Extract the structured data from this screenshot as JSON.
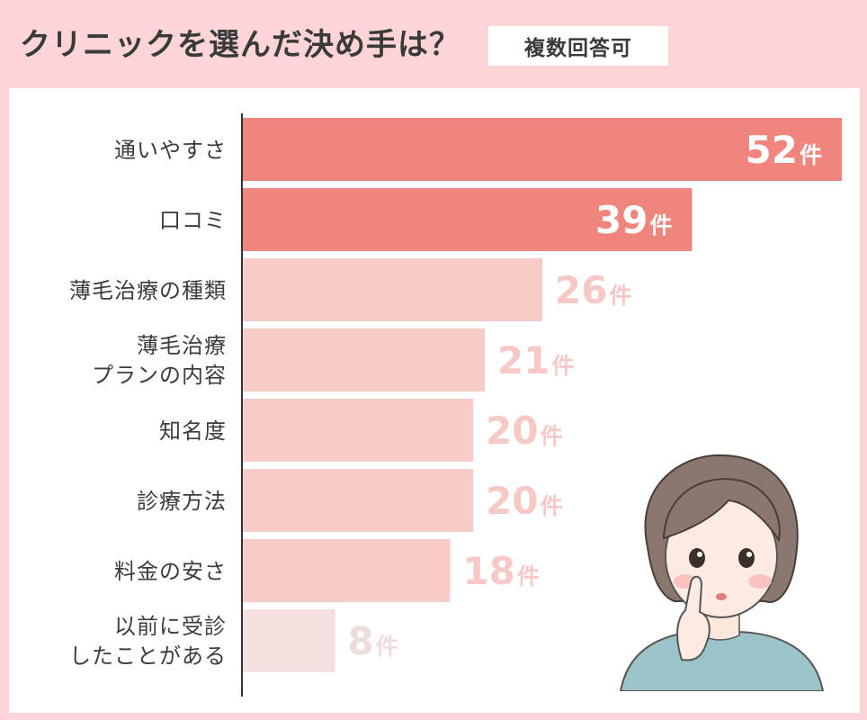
{
  "header": {
    "title": "クリニックを選んだ決め手は？",
    "badge": "複数回答可"
  },
  "colors": {
    "background": "#fdd5d6",
    "bar_top": "#f0857e",
    "bar_mid": "#f8cac8",
    "bar_low": "#f4e0df",
    "value_light": "#f6c9c7",
    "value_lowest": "#eedcdc",
    "value_on_bar": "#ffffff"
  },
  "chart_data": {
    "type": "bar",
    "orientation": "horizontal",
    "categories": [
      [
        "通いやすさ"
      ],
      [
        "口コミ"
      ],
      [
        "薄毛治療の種類"
      ],
      [
        "薄毛治療",
        "プランの内容"
      ],
      [
        "知名度"
      ],
      [
        "診療方法"
      ],
      [
        "料金の安さ"
      ],
      [
        "以前に受診",
        "したことがある"
      ]
    ],
    "values": [
      52,
      39,
      26,
      21,
      20,
      20,
      18,
      8
    ],
    "unit": "件",
    "xlim": [
      0,
      52
    ]
  }
}
